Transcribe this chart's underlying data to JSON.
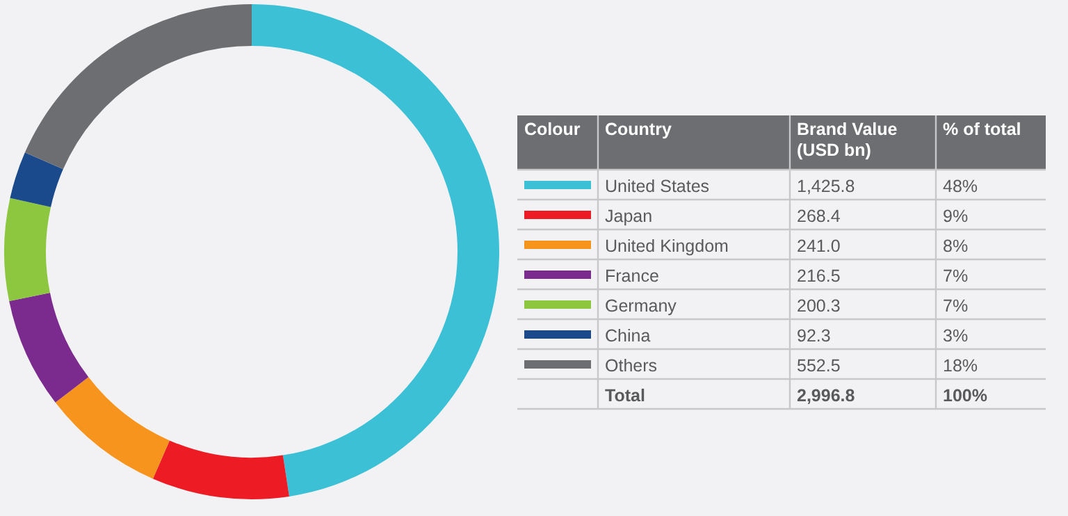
{
  "chart_data": {
    "type": "donut",
    "categories": [
      "United States",
      "Japan",
      "United Kingdom",
      "France",
      "Germany",
      "China",
      "Others"
    ],
    "values": [
      1425.8,
      268.4,
      241.0,
      216.5,
      200.3,
      92.3,
      552.5
    ],
    "colors": [
      "#3bc0d6",
      "#ed1c24",
      "#f7941d",
      "#7b2a8e",
      "#8dc63f",
      "#1b4a8c",
      "#6d6e71"
    ],
    "value_labels": [
      "1,425.8",
      "268.4",
      "241.0",
      "216.5",
      "200.3",
      "92.3",
      "552.5"
    ],
    "annotations": [
      "Colour",
      "Country",
      "Brand Value (USD bn)",
      "% of total",
      "48%",
      "9%",
      "8%",
      "7%",
      "7%",
      "3%",
      "18%",
      "Total",
      "2,996.8",
      "100%"
    ],
    "legend": "right"
  }
}
